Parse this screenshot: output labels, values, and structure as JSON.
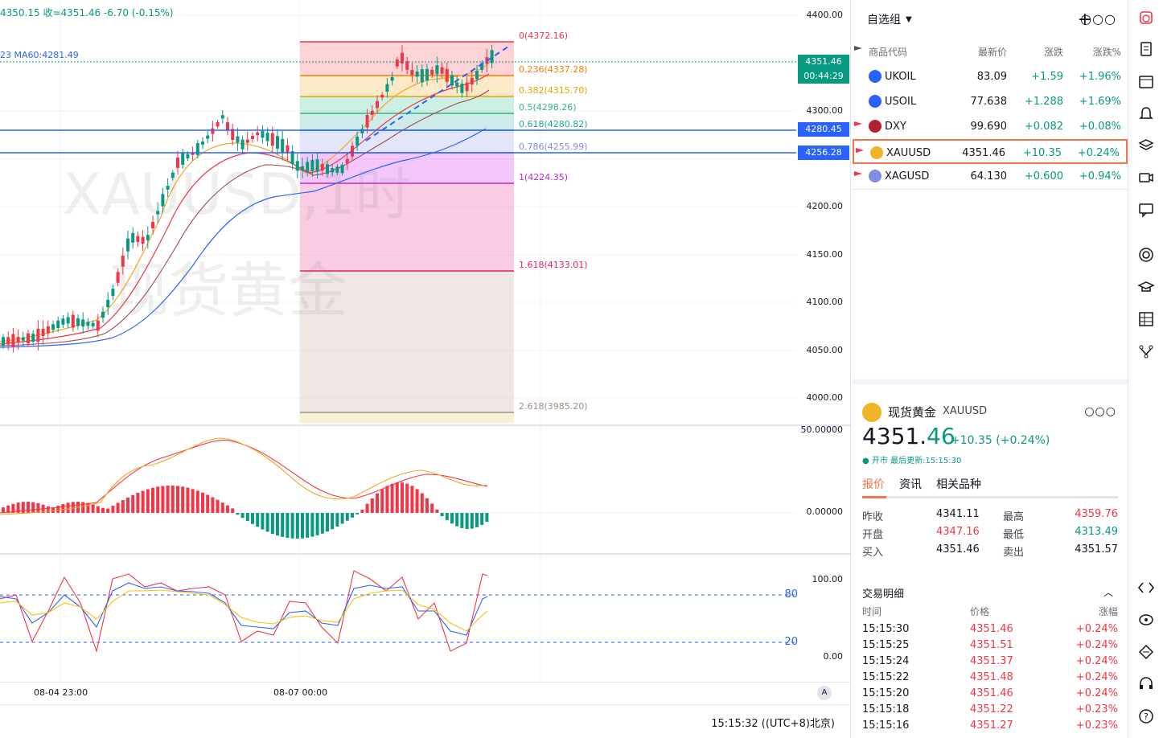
{
  "chart": {
    "legend_ohlc": "4350.15  收=4351.46  -6.70 (-0.15%)",
    "legend_ma": "23  MA60:4281.49",
    "watermark_symbol": "XAUUSD,1时",
    "watermark_name": "现货黄金",
    "price_axis": [
      "4400.00",
      "4300.00",
      "4200.00",
      "4150.00",
      "4100.00",
      "4050.00",
      "4000.00"
    ],
    "current_price_tag": "4351.46",
    "countdown_tag": "00:44:29",
    "hline_tags": [
      "4280.45",
      "4256.28"
    ],
    "fib_levels": [
      {
        "label": "0(4372.16)",
        "color": "#f23645"
      },
      {
        "label": "0.236(4337.28)",
        "color": "#f57c00"
      },
      {
        "label": "0.382(4315.70)",
        "color": "#e0a800"
      },
      {
        "label": "0.5(4298.26)",
        "color": "#2fb67e"
      },
      {
        "label": "0.618(4280.82)",
        "color": "#26a69a"
      },
      {
        "label": "0.786(4255.99)",
        "color": "#7e8ee0"
      },
      {
        "label": "1(4224.35)",
        "color": "#c026d3"
      },
      {
        "label": "1.618(4133.01)",
        "color": "#e91e63"
      },
      {
        "label": "2.618(3985.20)",
        "color": "#9e8f86"
      }
    ],
    "macd_axis": [
      "50.00000",
      "0.00000"
    ],
    "kdj_axis": [
      "100.00",
      "0.00"
    ],
    "kdj_levels": [
      "80",
      "20"
    ],
    "time_labels": [
      "08-04 23:00",
      "08-07 00:00"
    ],
    "auto_button": "A",
    "status_time": "15:15:32 ((UTC+8)北京)"
  },
  "watchlist": {
    "title": "自选组",
    "col_symbol": "商品代码",
    "col_last": "最新价",
    "col_change": "涨跌",
    "col_pct": "涨跌%",
    "rows": [
      {
        "symbol": "UKOIL",
        "last": "83.09",
        "change": "+1.59",
        "pct": "+1.96%",
        "icon_color": "#2962ff"
      },
      {
        "symbol": "USOIL",
        "last": "77.638",
        "change": "+1.288",
        "pct": "+1.69%",
        "icon_color": "#2962ff"
      },
      {
        "symbol": "DXY",
        "last": "99.690",
        "change": "+0.082",
        "pct": "+0.08%",
        "icon_color": "#b22234"
      },
      {
        "symbol": "XAUUSD",
        "last": "4351.46",
        "change": "+10.35",
        "pct": "+0.24%",
        "icon_color": "#f0b429"
      },
      {
        "symbol": "XAGUSD",
        "last": "64.130",
        "change": "+0.600",
        "pct": "+0.94%",
        "icon_color": "#7e8ee0"
      }
    ]
  },
  "details": {
    "name": "现货黄金",
    "code": "XAUUSD",
    "price_int": "4351.",
    "price_dec": "46",
    "change": "+10.35 (+0.24%)",
    "status": "● 开市  最后更新:15:15:30",
    "tabs": [
      "报价",
      "资讯",
      "相关品种"
    ],
    "quotes": [
      {
        "l1": "昨收",
        "v1": "4341.11",
        "l2": "最高",
        "v2": "4359.76"
      },
      {
        "l1": "开盘",
        "v1": "4347.16",
        "l2": "最低",
        "v2": "4313.49"
      },
      {
        "l1": "买入",
        "v1": "4351.46",
        "l2": "卖出",
        "v2": "4351.57"
      }
    ],
    "trades_title": "交易明细",
    "trades_head": {
      "time": "时间",
      "price": "价格",
      "pct": "涨幅"
    },
    "trades": [
      {
        "time": "15:15:30",
        "price": "4351.46",
        "pct": "+0.24%"
      },
      {
        "time": "15:15:25",
        "price": "4351.51",
        "pct": "+0.24%"
      },
      {
        "time": "15:15:24",
        "price": "4351.37",
        "pct": "+0.24%"
      },
      {
        "time": "15:15:22",
        "price": "4351.48",
        "pct": "+0.24%"
      },
      {
        "time": "15:15:20",
        "price": "4351.46",
        "pct": "+0.24%"
      },
      {
        "time": "15:15:18",
        "price": "4351.22",
        "pct": "+0.23%"
      },
      {
        "time": "15:15:16",
        "price": "4351.27",
        "pct": "+0.23%"
      }
    ]
  },
  "toolbar": [
    "alert-clock-icon",
    "notes-icon",
    "calendar-icon",
    "bell-icon",
    "layers-icon",
    "video-icon",
    "chat-icon",
    "target-icon",
    "education-icon",
    "grid-icon",
    "tree-icon",
    "code-icon",
    "broadcast-icon",
    "bridge-icon",
    "support-icon",
    "help-icon"
  ],
  "colors": {
    "up": "#089981",
    "down": "#f23645",
    "accent": "#f0754b",
    "line_blue": "#2962ff"
  }
}
